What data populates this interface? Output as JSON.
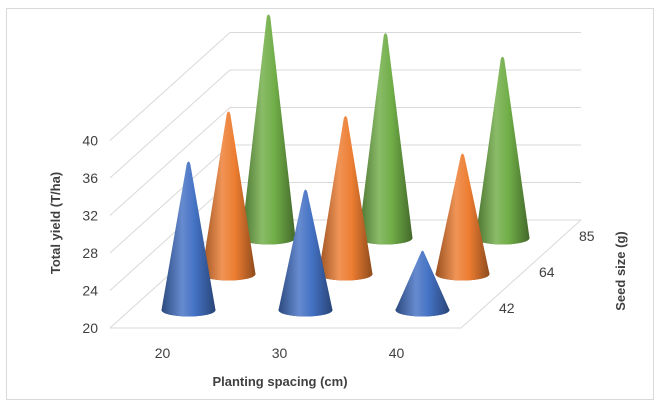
{
  "chart_data": {
    "type": "bar",
    "subtype": "3d-cone",
    "xlabel": "Planting spacing (cm)",
    "ylabel": "Total yield (T/ha)",
    "zlabel": "Seed size (g)",
    "x_categories": [
      "20",
      "30",
      "40"
    ],
    "z_categories": [
      "42",
      "64",
      "85"
    ],
    "y_ticks": [
      20,
      24,
      28,
      32,
      36,
      40
    ],
    "ylim": [
      20,
      44
    ],
    "series": [
      {
        "name": "42",
        "color": "#4472c4",
        "values": [
          36.0,
          33.0,
          26.5
        ]
      },
      {
        "name": "64",
        "color": "#ed7d31",
        "values": [
          37.5,
          37.0,
          33.0
        ]
      },
      {
        "name": "85",
        "color": "#70ad47",
        "values": [
          44.0,
          42.0,
          39.5
        ]
      }
    ],
    "grid": true,
    "legend": "none"
  }
}
